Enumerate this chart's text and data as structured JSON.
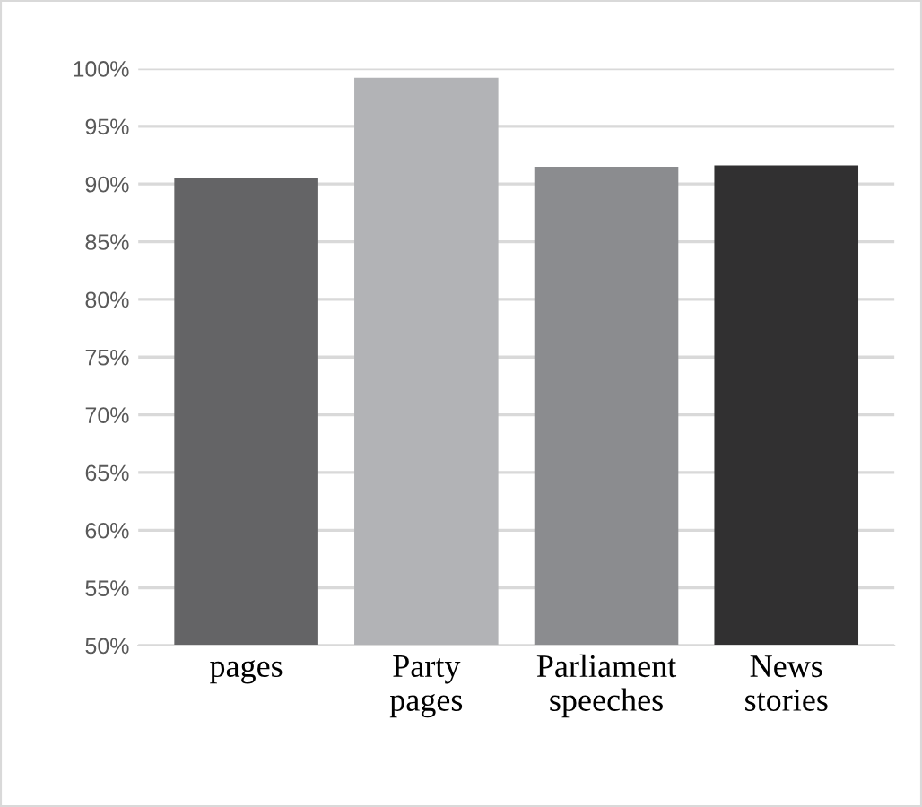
{
  "chart_data": {
    "type": "bar",
    "categories": [
      "pages",
      "Party\npages",
      "Parliament\nspeeches",
      "News\nstories"
    ],
    "values": [
      90.5,
      99.2,
      91.5,
      91.6
    ],
    "colors": [
      "#646466",
      "#b2b3b6",
      "#8b8c8f",
      "#313031"
    ],
    "ylim": [
      50,
      100
    ],
    "yticks": [
      {
        "value": 50,
        "label": "50%"
      },
      {
        "value": 55,
        "label": "55%"
      },
      {
        "value": 60,
        "label": "60%"
      },
      {
        "value": 65,
        "label": "65%"
      },
      {
        "value": 70,
        "label": "70%"
      },
      {
        "value": 75,
        "label": "75%"
      },
      {
        "value": 80,
        "label": "80%"
      },
      {
        "value": 85,
        "label": "85%"
      },
      {
        "value": 90,
        "label": "90%"
      },
      {
        "value": 95,
        "label": "95%"
      },
      {
        "value": 100,
        "label": "100%"
      }
    ],
    "grid": "y"
  }
}
